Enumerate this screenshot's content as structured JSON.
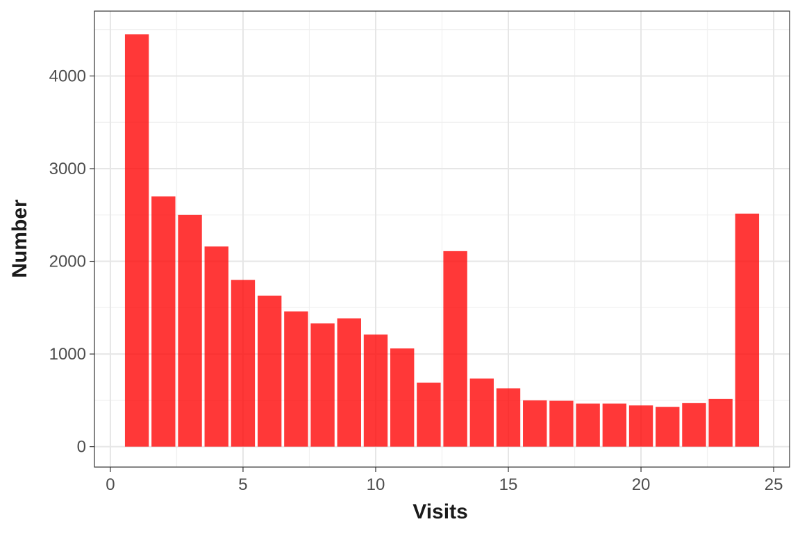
{
  "chart_data": {
    "type": "bar",
    "title": "",
    "xlabel": "Visits",
    "ylabel": "Number",
    "x": [
      1,
      2,
      3,
      4,
      5,
      6,
      7,
      8,
      9,
      10,
      11,
      12,
      13,
      14,
      15,
      16,
      17,
      18,
      19,
      20,
      21,
      22,
      23,
      24
    ],
    "values": [
      4450,
      2700,
      2500,
      2160,
      1800,
      1630,
      1460,
      1330,
      1385,
      1210,
      1060,
      690,
      2110,
      735,
      630,
      500,
      495,
      465,
      465,
      445,
      430,
      470,
      515,
      2515
    ],
    "xlim": [
      -0.6,
      25.6
    ],
    "ylim": [
      -220,
      4700
    ],
    "x_ticks": [
      0,
      5,
      10,
      15,
      20,
      25
    ],
    "x_tick_labels": [
      "0",
      "5",
      "10",
      "15",
      "20",
      "25"
    ],
    "y_ticks": [
      0,
      1000,
      2000,
      3000,
      4000
    ],
    "y_tick_labels": [
      "0",
      "1000",
      "2000",
      "3000",
      "4000"
    ],
    "grid": true,
    "legend": "none",
    "colors": {
      "bar": "#ff0000",
      "bar_opacity": 0.78,
      "grid_major": "#e6e6e6",
      "grid_minor": "#f0f0f0",
      "panel_border": "#333333"
    }
  }
}
